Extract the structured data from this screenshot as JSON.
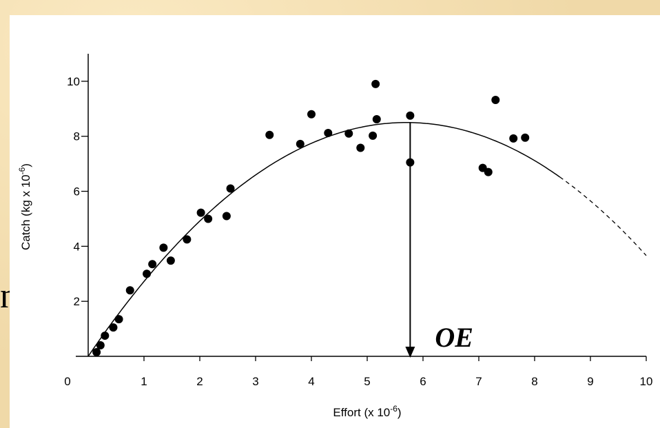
{
  "slide": {
    "background_color": "#f0d9a8",
    "stray_text": "n"
  },
  "chart_data": {
    "type": "scatter",
    "xlabel": "Effort (x 10",
    "xlabel_sup": "-6",
    "xlabel_end": ")",
    "ylabel": "Catch (kg x 10",
    "ylabel_sup": "-6",
    "ylabel_end": ")",
    "xlim": [
      0,
      10
    ],
    "ylim": [
      0,
      11
    ],
    "x_ticks": [
      0,
      1,
      2,
      3,
      4,
      5,
      6,
      7,
      8,
      9,
      10
    ],
    "x_tick_labels": [
      "0",
      "1",
      "2",
      "3",
      "4",
      "5",
      "6",
      "7",
      "8",
      "9",
      "10"
    ],
    "y_ticks": [
      2,
      4,
      6,
      8,
      10
    ],
    "y_tick_labels": [
      "2",
      "4",
      "6",
      "8",
      "10"
    ],
    "grid": false,
    "series": [
      {
        "points": [
          [
            0.15,
            0.15
          ],
          [
            0.22,
            0.4
          ],
          [
            0.3,
            0.75
          ],
          [
            0.45,
            1.05
          ],
          [
            0.55,
            1.35
          ],
          [
            0.75,
            2.4
          ],
          [
            1.05,
            3.0
          ],
          [
            1.15,
            3.35
          ],
          [
            1.35,
            3.95
          ],
          [
            1.48,
            3.48
          ],
          [
            1.77,
            4.25
          ],
          [
            2.02,
            5.22
          ],
          [
            2.15,
            5.0
          ],
          [
            2.48,
            5.1
          ],
          [
            2.55,
            6.1
          ],
          [
            3.25,
            8.05
          ],
          [
            3.8,
            7.72
          ],
          [
            4.0,
            8.8
          ],
          [
            4.3,
            8.12
          ],
          [
            4.67,
            8.1
          ],
          [
            4.88,
            7.58
          ],
          [
            5.1,
            8.02
          ],
          [
            5.15,
            9.9
          ],
          [
            5.17,
            8.62
          ],
          [
            5.77,
            8.75
          ],
          [
            5.77,
            7.05
          ],
          [
            7.07,
            6.85
          ],
          [
            7.17,
            6.7
          ],
          [
            7.3,
            9.32
          ],
          [
            7.62,
            7.92
          ],
          [
            7.83,
            7.95
          ]
        ]
      }
    ],
    "fit_curve": {
      "type": "parabola",
      "peak_x": 5.7,
      "peak_y": 8.5,
      "solid_until_x": 8.45,
      "dashed_until_x": 10
    },
    "annotation": {
      "text": "OE",
      "arrow_x": 5.77,
      "arrow_from_y": 8.5,
      "arrow_to_y": 0
    }
  }
}
